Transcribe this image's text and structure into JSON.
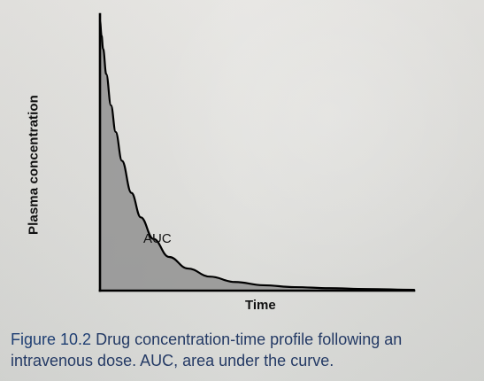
{
  "chart_data": {
    "type": "area",
    "title": "",
    "xlabel": "Time",
    "ylabel": "Plasma concentration",
    "annotation": "AUC",
    "x": [
      0,
      0.05,
      0.1,
      0.2,
      0.35,
      0.5,
      0.7,
      1.0,
      1.3,
      1.7,
      2.2,
      2.8,
      3.5,
      4.3,
      5.2,
      6.2,
      7.3,
      8.5,
      10
    ],
    "values": [
      10,
      9.47,
      8.97,
      8.04,
      6.88,
      5.89,
      4.82,
      3.63,
      2.72,
      1.92,
      1.25,
      0.82,
      0.52,
      0.32,
      0.2,
      0.13,
      0.09,
      0.06,
      0.03
    ],
    "xlim": [
      0,
      10
    ],
    "ylim": [
      0,
      10
    ],
    "grid": false,
    "legend": "none",
    "colors": {
      "fill": "#8f8f8f",
      "line": "#000000",
      "axis": "#000000"
    }
  },
  "caption": {
    "label": "Figure 10.2",
    "text": "Drug concentration-time profile following an intravenous dose. AUC, area under the curve."
  }
}
